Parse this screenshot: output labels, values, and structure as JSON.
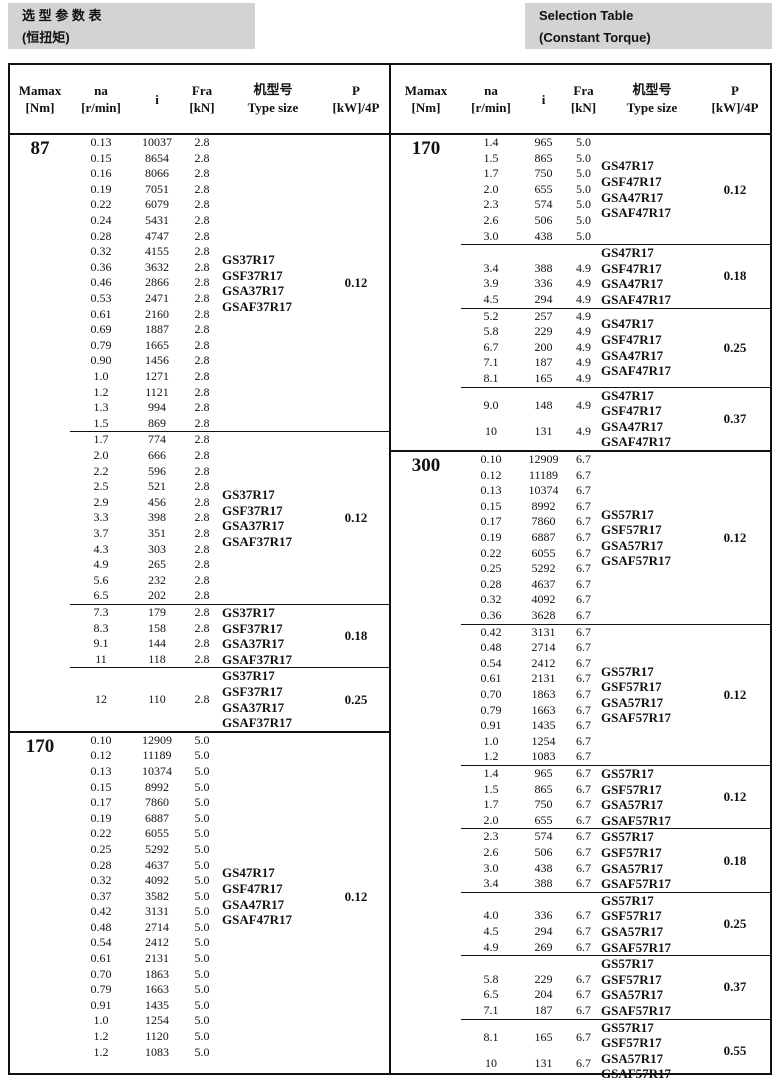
{
  "banner_left": {
    "line1": "选 型 参 数 表",
    "line2": "(恒扭矩)"
  },
  "banner_right": {
    "line1": "Selection Table",
    "line2": "(Constant Torque)"
  },
  "headers": {
    "mamax": "Mamax",
    "mamax_unit": "[Nm]",
    "na": "na",
    "na_unit": "[r/min]",
    "i": "i",
    "fra": "Fra",
    "fra_unit": "[kN]",
    "type_zh": "机型号",
    "type_en": "Type size",
    "p": "P",
    "p_unit": "[kW]/4P"
  },
  "left": [
    {
      "mamax": "87",
      "subs": [
        {
          "p": "0.12",
          "types": [
            "GS37R17",
            "GSF37R17",
            "GSA37R17",
            "GSAF37R17"
          ],
          "rows": [
            [
              "0.13",
              "10037",
              "2.8"
            ],
            [
              "0.15",
              "8654",
              "2.8"
            ],
            [
              "0.16",
              "8066",
              "2.8"
            ],
            [
              "0.19",
              "7051",
              "2.8"
            ],
            [
              "0.22",
              "6079",
              "2.8"
            ],
            [
              "0.24",
              "5431",
              "2.8"
            ],
            [
              "0.28",
              "4747",
              "2.8"
            ],
            [
              "0.32",
              "4155",
              "2.8"
            ],
            [
              "0.36",
              "3632",
              "2.8"
            ],
            [
              "0.46",
              "2866",
              "2.8"
            ],
            [
              "0.53",
              "2471",
              "2.8"
            ],
            [
              "0.61",
              "2160",
              "2.8"
            ],
            [
              "0.69",
              "1887",
              "2.8"
            ],
            [
              "0.79",
              "1665",
              "2.8"
            ],
            [
              "0.90",
              "1456",
              "2.8"
            ],
            [
              "1.0",
              "1271",
              "2.8"
            ],
            [
              "1.2",
              "1121",
              "2.8"
            ],
            [
              "1.3",
              "994",
              "2.8"
            ],
            [
              "1.5",
              "869",
              "2.8"
            ]
          ]
        },
        {
          "p": "0.12",
          "types": [
            "GS37R17",
            "GSF37R17",
            "GSA37R17",
            "GSAF37R17"
          ],
          "rows": [
            [
              "1.7",
              "774",
              "2.8"
            ],
            [
              "2.0",
              "666",
              "2.8"
            ],
            [
              "2.2",
              "596",
              "2.8"
            ],
            [
              "2.5",
              "521",
              "2.8"
            ],
            [
              "2.9",
              "456",
              "2.8"
            ],
            [
              "3.3",
              "398",
              "2.8"
            ],
            [
              "3.7",
              "351",
              "2.8"
            ],
            [
              "4.3",
              "303",
              "2.8"
            ],
            [
              "4.9",
              "265",
              "2.8"
            ],
            [
              "5.6",
              "232",
              "2.8"
            ],
            [
              "6.5",
              "202",
              "2.8"
            ]
          ]
        },
        {
          "p": "0.18",
          "types": [
            "GS37R17",
            "GSF37R17",
            "GSA37R17",
            "GSAF37R17"
          ],
          "rows": [
            [
              "7.3",
              "179",
              "2.8"
            ],
            [
              "8.3",
              "158",
              "2.8"
            ],
            [
              "9.1",
              "144",
              "2.8"
            ],
            [
              "11",
              "118",
              "2.8"
            ]
          ]
        },
        {
          "p": "0.25",
          "types": [
            "GS37R17",
            "GSF37R17",
            "GSA37R17",
            "GSAF37R17"
          ],
          "rows": [
            [
              "12",
              "110",
              "2.8"
            ]
          ]
        }
      ]
    },
    {
      "mamax": "170",
      "subs": [
        {
          "p": "0.12",
          "types": [
            "GS47R17",
            "GSF47R17",
            "GSA47R17",
            "GSAF47R17"
          ],
          "rows": [
            [
              "0.10",
              "12909",
              "5.0"
            ],
            [
              "0.12",
              "11189",
              "5.0"
            ],
            [
              "0.13",
              "10374",
              "5.0"
            ],
            [
              "0.15",
              "8992",
              "5.0"
            ],
            [
              "0.17",
              "7860",
              "5.0"
            ],
            [
              "0.19",
              "6887",
              "5.0"
            ],
            [
              "0.22",
              "6055",
              "5.0"
            ],
            [
              "0.25",
              "5292",
              "5.0"
            ],
            [
              "0.28",
              "4637",
              "5.0"
            ],
            [
              "0.32",
              "4092",
              "5.0"
            ],
            [
              "0.37",
              "3582",
              "5.0"
            ],
            [
              "0.42",
              "3131",
              "5.0"
            ],
            [
              "0.48",
              "2714",
              "5.0"
            ],
            [
              "0.54",
              "2412",
              "5.0"
            ],
            [
              "0.61",
              "2131",
              "5.0"
            ],
            [
              "0.70",
              "1863",
              "5.0"
            ],
            [
              "0.79",
              "1663",
              "5.0"
            ],
            [
              "0.91",
              "1435",
              "5.0"
            ],
            [
              "1.0",
              "1254",
              "5.0"
            ],
            [
              "1.2",
              "1120",
              "5.0"
            ],
            [
              "1.2",
              "1083",
              "5.0"
            ]
          ]
        }
      ]
    }
  ],
  "right": [
    {
      "mamax": "170",
      "subs": [
        {
          "p": "0.12",
          "types": [
            "GS47R17",
            "GSF47R17",
            "GSA47R17",
            "GSAF47R17"
          ],
          "rows": [
            [
              "1.4",
              "965",
              "5.0"
            ],
            [
              "1.5",
              "865",
              "5.0"
            ],
            [
              "1.7",
              "750",
              "5.0"
            ],
            [
              "2.0",
              "655",
              "5.0"
            ],
            [
              "2.3",
              "574",
              "5.0"
            ],
            [
              "2.6",
              "506",
              "5.0"
            ],
            [
              "3.0",
              "438",
              "5.0"
            ]
          ]
        },
        {
          "p": "0.18",
          "types": [
            "GS47R17",
            "GSF47R17",
            "GSA47R17",
            "GSAF47R17"
          ],
          "rows": [
            [
              "3.4",
              "388",
              "4.9"
            ],
            [
              "3.9",
              "336",
              "4.9"
            ],
            [
              "4.5",
              "294",
              "4.9"
            ]
          ]
        },
        {
          "p": "0.25",
          "types": [
            "GS47R17",
            "GSF47R17",
            "GSA47R17",
            "GSAF47R17"
          ],
          "rows": [
            [
              "5.2",
              "257",
              "4.9"
            ],
            [
              "5.8",
              "229",
              "4.9"
            ],
            [
              "6.7",
              "200",
              "4.9"
            ],
            [
              "7.1",
              "187",
              "4.9"
            ],
            [
              "8.1",
              "165",
              "4.9"
            ]
          ]
        },
        {
          "p": "0.37",
          "types": [
            "GS47R17",
            "GSF47R17",
            "GSA47R17",
            "GSAF47R17"
          ],
          "rows": [
            [
              "9.0",
              "148",
              "4.9"
            ],
            [
              "10",
              "131",
              "4.9"
            ]
          ]
        }
      ]
    },
    {
      "mamax": "300",
      "subs": [
        {
          "p": "0.12",
          "types": [
            "GS57R17",
            "GSF57R17",
            "GSA57R17",
            "GSAF57R17"
          ],
          "rows": [
            [
              "0.10",
              "12909",
              "6.7"
            ],
            [
              "0.12",
              "11189",
              "6.7"
            ],
            [
              "0.13",
              "10374",
              "6.7"
            ],
            [
              "0.15",
              "8992",
              "6.7"
            ],
            [
              "0.17",
              "7860",
              "6.7"
            ],
            [
              "0.19",
              "6887",
              "6.7"
            ],
            [
              "0.22",
              "6055",
              "6.7"
            ],
            [
              "0.25",
              "5292",
              "6.7"
            ],
            [
              "0.28",
              "4637",
              "6.7"
            ],
            [
              "0.32",
              "4092",
              "6.7"
            ],
            [
              "0.36",
              "3628",
              "6.7"
            ]
          ]
        },
        {
          "p": "0.12",
          "types": [
            "GS57R17",
            "GSF57R17",
            "GSA57R17",
            "GSAF57R17"
          ],
          "rows": [
            [
              "0.42",
              "3131",
              "6.7"
            ],
            [
              "0.48",
              "2714",
              "6.7"
            ],
            [
              "0.54",
              "2412",
              "6.7"
            ],
            [
              "0.61",
              "2131",
              "6.7"
            ],
            [
              "0.70",
              "1863",
              "6.7"
            ],
            [
              "0.79",
              "1663",
              "6.7"
            ],
            [
              "0.91",
              "1435",
              "6.7"
            ],
            [
              "1.0",
              "1254",
              "6.7"
            ],
            [
              "1.2",
              "1083",
              "6.7"
            ]
          ]
        },
        {
          "p": "0.12",
          "types": [
            "GS57R17",
            "GSF57R17",
            "GSA57R17",
            "GSAF57R17"
          ],
          "rows": [
            [
              "1.4",
              "965",
              "6.7"
            ],
            [
              "1.5",
              "865",
              "6.7"
            ],
            [
              "1.7",
              "750",
              "6.7"
            ],
            [
              "2.0",
              "655",
              "6.7"
            ]
          ]
        },
        {
          "p": "0.18",
          "types": [
            "GS57R17",
            "GSF57R17",
            "GSA57R17",
            "GSAF57R17"
          ],
          "rows": [
            [
              "2.3",
              "574",
              "6.7"
            ],
            [
              "2.6",
              "506",
              "6.7"
            ],
            [
              "3.0",
              "438",
              "6.7"
            ],
            [
              "3.4",
              "388",
              "6.7"
            ]
          ]
        },
        {
          "p": "0.25",
          "types": [
            "GS57R17",
            "GSF57R17",
            "GSA57R17",
            "GSAF57R17"
          ],
          "rows": [
            [
              "4.0",
              "336",
              "6.7"
            ],
            [
              "4.5",
              "294",
              "6.7"
            ],
            [
              "4.9",
              "269",
              "6.7"
            ]
          ]
        },
        {
          "p": "0.37",
          "types": [
            "GS57R17",
            "GSF57R17",
            "GSA57R17",
            "GSAF57R17"
          ],
          "rows": [
            [
              "5.8",
              "229",
              "6.7"
            ],
            [
              "6.5",
              "204",
              "6.7"
            ],
            [
              "7.1",
              "187",
              "6.7"
            ]
          ]
        },
        {
          "p": "0.55",
          "types": [
            "GS57R17",
            "GSF57R17",
            "GSA57R17",
            "GSAF57R17"
          ],
          "rows": [
            [
              "8.1",
              "165",
              "6.7"
            ],
            [
              "10",
              "131",
              "6.7"
            ]
          ]
        }
      ]
    }
  ]
}
